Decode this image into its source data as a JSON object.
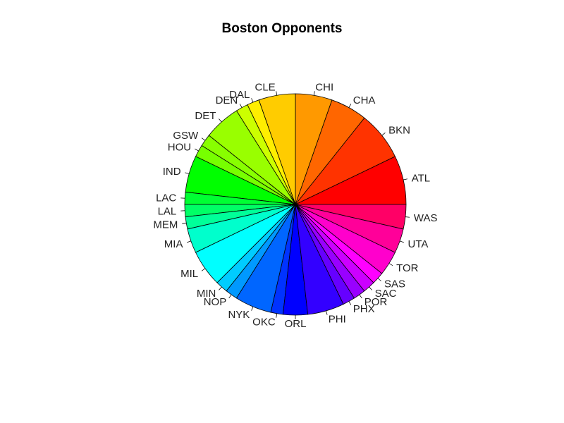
{
  "chart_data": {
    "type": "pie",
    "title": "Boston Opponents",
    "start_angle_deg": 0,
    "direction": "counterclockwise",
    "slices": [
      {
        "label": "ATL",
        "value": 4,
        "color": "#FF0000"
      },
      {
        "label": "BKN",
        "value": 4,
        "color": "#FF3300"
      },
      {
        "label": "CHA",
        "value": 3,
        "color": "#FF6600"
      },
      {
        "label": "CHI",
        "value": 3,
        "color": "#FF9900"
      },
      {
        "label": "CLE",
        "value": 3,
        "color": "#FFCC00"
      },
      {
        "label": "DAL",
        "value": 1,
        "color": "#FFEE00"
      },
      {
        "label": "DEN",
        "value": 1,
        "color": "#CCFF00"
      },
      {
        "label": "DET",
        "value": 3,
        "color": "#99FF00"
      },
      {
        "label": "GSW",
        "value": 1,
        "color": "#88FF00"
      },
      {
        "label": "HOU",
        "value": 1,
        "color": "#77FF00"
      },
      {
        "label": "IND",
        "value": 3,
        "color": "#00FF00"
      },
      {
        "label": "LAC",
        "value": 1,
        "color": "#00FF33"
      },
      {
        "label": "LAL",
        "value": 1,
        "color": "#00FF66"
      },
      {
        "label": "MEM",
        "value": 1,
        "color": "#00FF99"
      },
      {
        "label": "MIA",
        "value": 2,
        "color": "#00FFCC"
      },
      {
        "label": "MIL",
        "value": 3,
        "color": "#00FFFF"
      },
      {
        "label": "MIN",
        "value": 1,
        "color": "#00CCFF"
      },
      {
        "label": "NOP",
        "value": 1,
        "color": "#0099FF"
      },
      {
        "label": "NYK",
        "value": 3,
        "color": "#0066FF"
      },
      {
        "label": "OKC",
        "value": 1,
        "color": "#0033FF"
      },
      {
        "label": "ORL",
        "value": 2,
        "color": "#0000FF"
      },
      {
        "label": "PHI",
        "value": 3,
        "color": "#3300FF"
      },
      {
        "label": "PHX",
        "value": 1,
        "color": "#6600FF"
      },
      {
        "label": "POR",
        "value": 1,
        "color": "#9900FF"
      },
      {
        "label": "SAC",
        "value": 1,
        "color": "#CC00FF"
      },
      {
        "label": "SAS",
        "value": 1,
        "color": "#FF00FF"
      },
      {
        "label": "TOR",
        "value": 2,
        "color": "#FF00CC"
      },
      {
        "label": "UTA",
        "value": 2,
        "color": "#FF0099"
      },
      {
        "label": "WAS",
        "value": 2,
        "color": "#FF0066"
      }
    ]
  }
}
